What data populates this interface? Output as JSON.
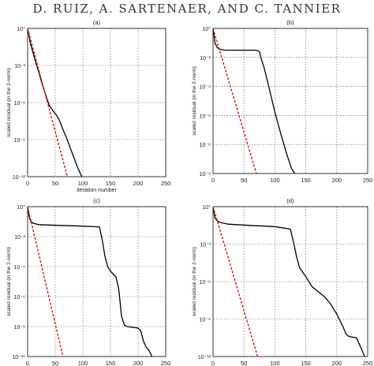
{
  "header": {
    "text": "D. RUIZ, A. SARTENAER, AND C. TANNIER"
  },
  "chart_data": [
    {
      "type": "line",
      "title": "(a)",
      "xlabel": "iteration number",
      "ylabel": "scaled residual (in the 2-norm)",
      "xlim": [
        0,
        250
      ],
      "ylim": [
        -12,
        0
      ],
      "y_scale": "log10",
      "xticks": [
        "0",
        "50",
        "100",
        "150",
        "200",
        "250"
      ],
      "yticks": [
        "10^0",
        "10^-3",
        "10^-6",
        "10^-9",
        "10^-12"
      ],
      "ytick_labels": [
        "10°",
        "10⁻³",
        "10⁻⁶",
        "10⁻⁹",
        "10⁻¹²"
      ],
      "grid": true,
      "series": [
        {
          "style": "solid",
          "color": "#000000",
          "x": [
            0,
            5,
            10,
            15,
            20,
            25,
            30,
            35,
            40,
            45,
            48,
            52,
            56,
            60,
            65,
            70,
            75,
            80,
            85,
            90,
            95,
            98
          ],
          "y": [
            0,
            -1.2,
            -2.0,
            -2.8,
            -3.5,
            -4.3,
            -5.0,
            -5.7,
            -6.3,
            -6.6,
            -6.8,
            -7.0,
            -7.3,
            -7.7,
            -8.3,
            -8.8,
            -9.4,
            -10.0,
            -10.6,
            -11.2,
            -11.7,
            -12
          ]
        },
        {
          "style": "dashed",
          "color": "#d01010",
          "x": [
            0,
            72
          ],
          "y": [
            0,
            -12
          ]
        }
      ]
    },
    {
      "type": "line",
      "title": "(b)",
      "xlabel": "",
      "ylabel": "scaled residual (in the 2-norm)",
      "xlim": [
        0,
        250
      ],
      "ylim": [
        -9,
        0
      ],
      "y_scale": "log10",
      "xticks": [
        "0",
        "50",
        "100",
        "150",
        "200",
        "250"
      ],
      "yticks": [
        "10^0",
        "10^-2",
        "10^-4",
        "10^-6",
        "10^-8",
        "10^-9"
      ],
      "ytick_labels": [
        "10°",
        "10⁻²",
        "10⁻⁴",
        "10⁻⁶",
        "10⁻⁸",
        "10⁻⁹"
      ],
      "grid": true,
      "series": [
        {
          "style": "solid",
          "color": "#000000",
          "x": [
            0,
            3,
            7,
            12,
            20,
            40,
            60,
            70,
            75,
            78,
            83,
            90,
            100,
            110,
            120,
            127,
            132
          ],
          "y": [
            0,
            -0.9,
            -1.2,
            -1.3,
            -1.35,
            -1.35,
            -1.35,
            -1.35,
            -1.45,
            -1.9,
            -2.5,
            -3.6,
            -5.2,
            -6.6,
            -7.9,
            -8.7,
            -9
          ]
        },
        {
          "style": "dashed",
          "color": "#d01010",
          "x": [
            0,
            70
          ],
          "y": [
            0,
            -9
          ]
        }
      ]
    },
    {
      "type": "line",
      "title": "(c)",
      "xlabel": "iteration number",
      "ylabel": "scaled residual (in the 2-norm)",
      "xlim": [
        0,
        250
      ],
      "ylim": [
        -10,
        0
      ],
      "y_scale": "log10",
      "xticks": [
        "0",
        "50",
        "100",
        "150",
        "200",
        "250"
      ],
      "yticks": [
        "10^0",
        "10^-2",
        "10^-4",
        "10^-6",
        "10^-8",
        "10^-10"
      ],
      "ytick_labels": [
        "10°",
        "10⁻²",
        "10⁻⁴",
        "10⁻⁶",
        "10⁻⁸",
        "10⁻¹⁰"
      ],
      "grid": true,
      "series": [
        {
          "style": "solid",
          "color": "#000000",
          "x": [
            0,
            3,
            6,
            10,
            20,
            60,
            100,
            130,
            135,
            140,
            145,
            150,
            155,
            160,
            165,
            170,
            175,
            180,
            200,
            205,
            210,
            215,
            220,
            225
          ],
          "y": [
            0,
            -0.7,
            -1.0,
            -1.1,
            -1.2,
            -1.25,
            -1.3,
            -1.35,
            -2.2,
            -3.3,
            -4.0,
            -4.3,
            -4.5,
            -4.7,
            -5.5,
            -7.3,
            -7.9,
            -8.0,
            -8.1,
            -8.3,
            -9.0,
            -9.4,
            -9.6,
            -10
          ]
        },
        {
          "style": "dashed",
          "color": "#d01010",
          "x": [
            0,
            64
          ],
          "y": [
            0,
            -10
          ]
        }
      ]
    },
    {
      "type": "line",
      "title": "(d)",
      "xlabel": "iteration number",
      "ylabel": "scaled residual (in the 2-norm)",
      "xlim": [
        0,
        250
      ],
      "ylim": [
        -12,
        0
      ],
      "y_scale": "log10",
      "xticks": [
        "0",
        "50",
        "100",
        "150",
        "200",
        "250"
      ],
      "yticks": [
        "10^0",
        "10^-3",
        "10^-6",
        "10^-9",
        "10^-12"
      ],
      "ytick_labels": [
        "10°",
        "10⁻³",
        "10⁻⁶",
        "10⁻⁹",
        "10⁻¹²"
      ],
      "grid": true,
      "series": [
        {
          "style": "solid",
          "color": "#000000",
          "x": [
            0,
            3,
            8,
            15,
            25,
            60,
            100,
            125,
            130,
            135,
            140,
            150,
            160,
            170,
            180,
            190,
            200,
            210,
            215,
            220,
            232,
            240,
            245
          ],
          "y": [
            0,
            -0.9,
            -1.2,
            -1.3,
            -1.4,
            -1.5,
            -1.6,
            -1.8,
            -2.8,
            -4.0,
            -4.9,
            -5.6,
            -6.4,
            -6.8,
            -7.2,
            -7.8,
            -8.6,
            -9.6,
            -10.2,
            -10.4,
            -10.5,
            -11.4,
            -12
          ]
        },
        {
          "style": "dashed",
          "color": "#d01010",
          "x": [
            0,
            72
          ],
          "y": [
            0,
            -12
          ]
        }
      ]
    }
  ]
}
